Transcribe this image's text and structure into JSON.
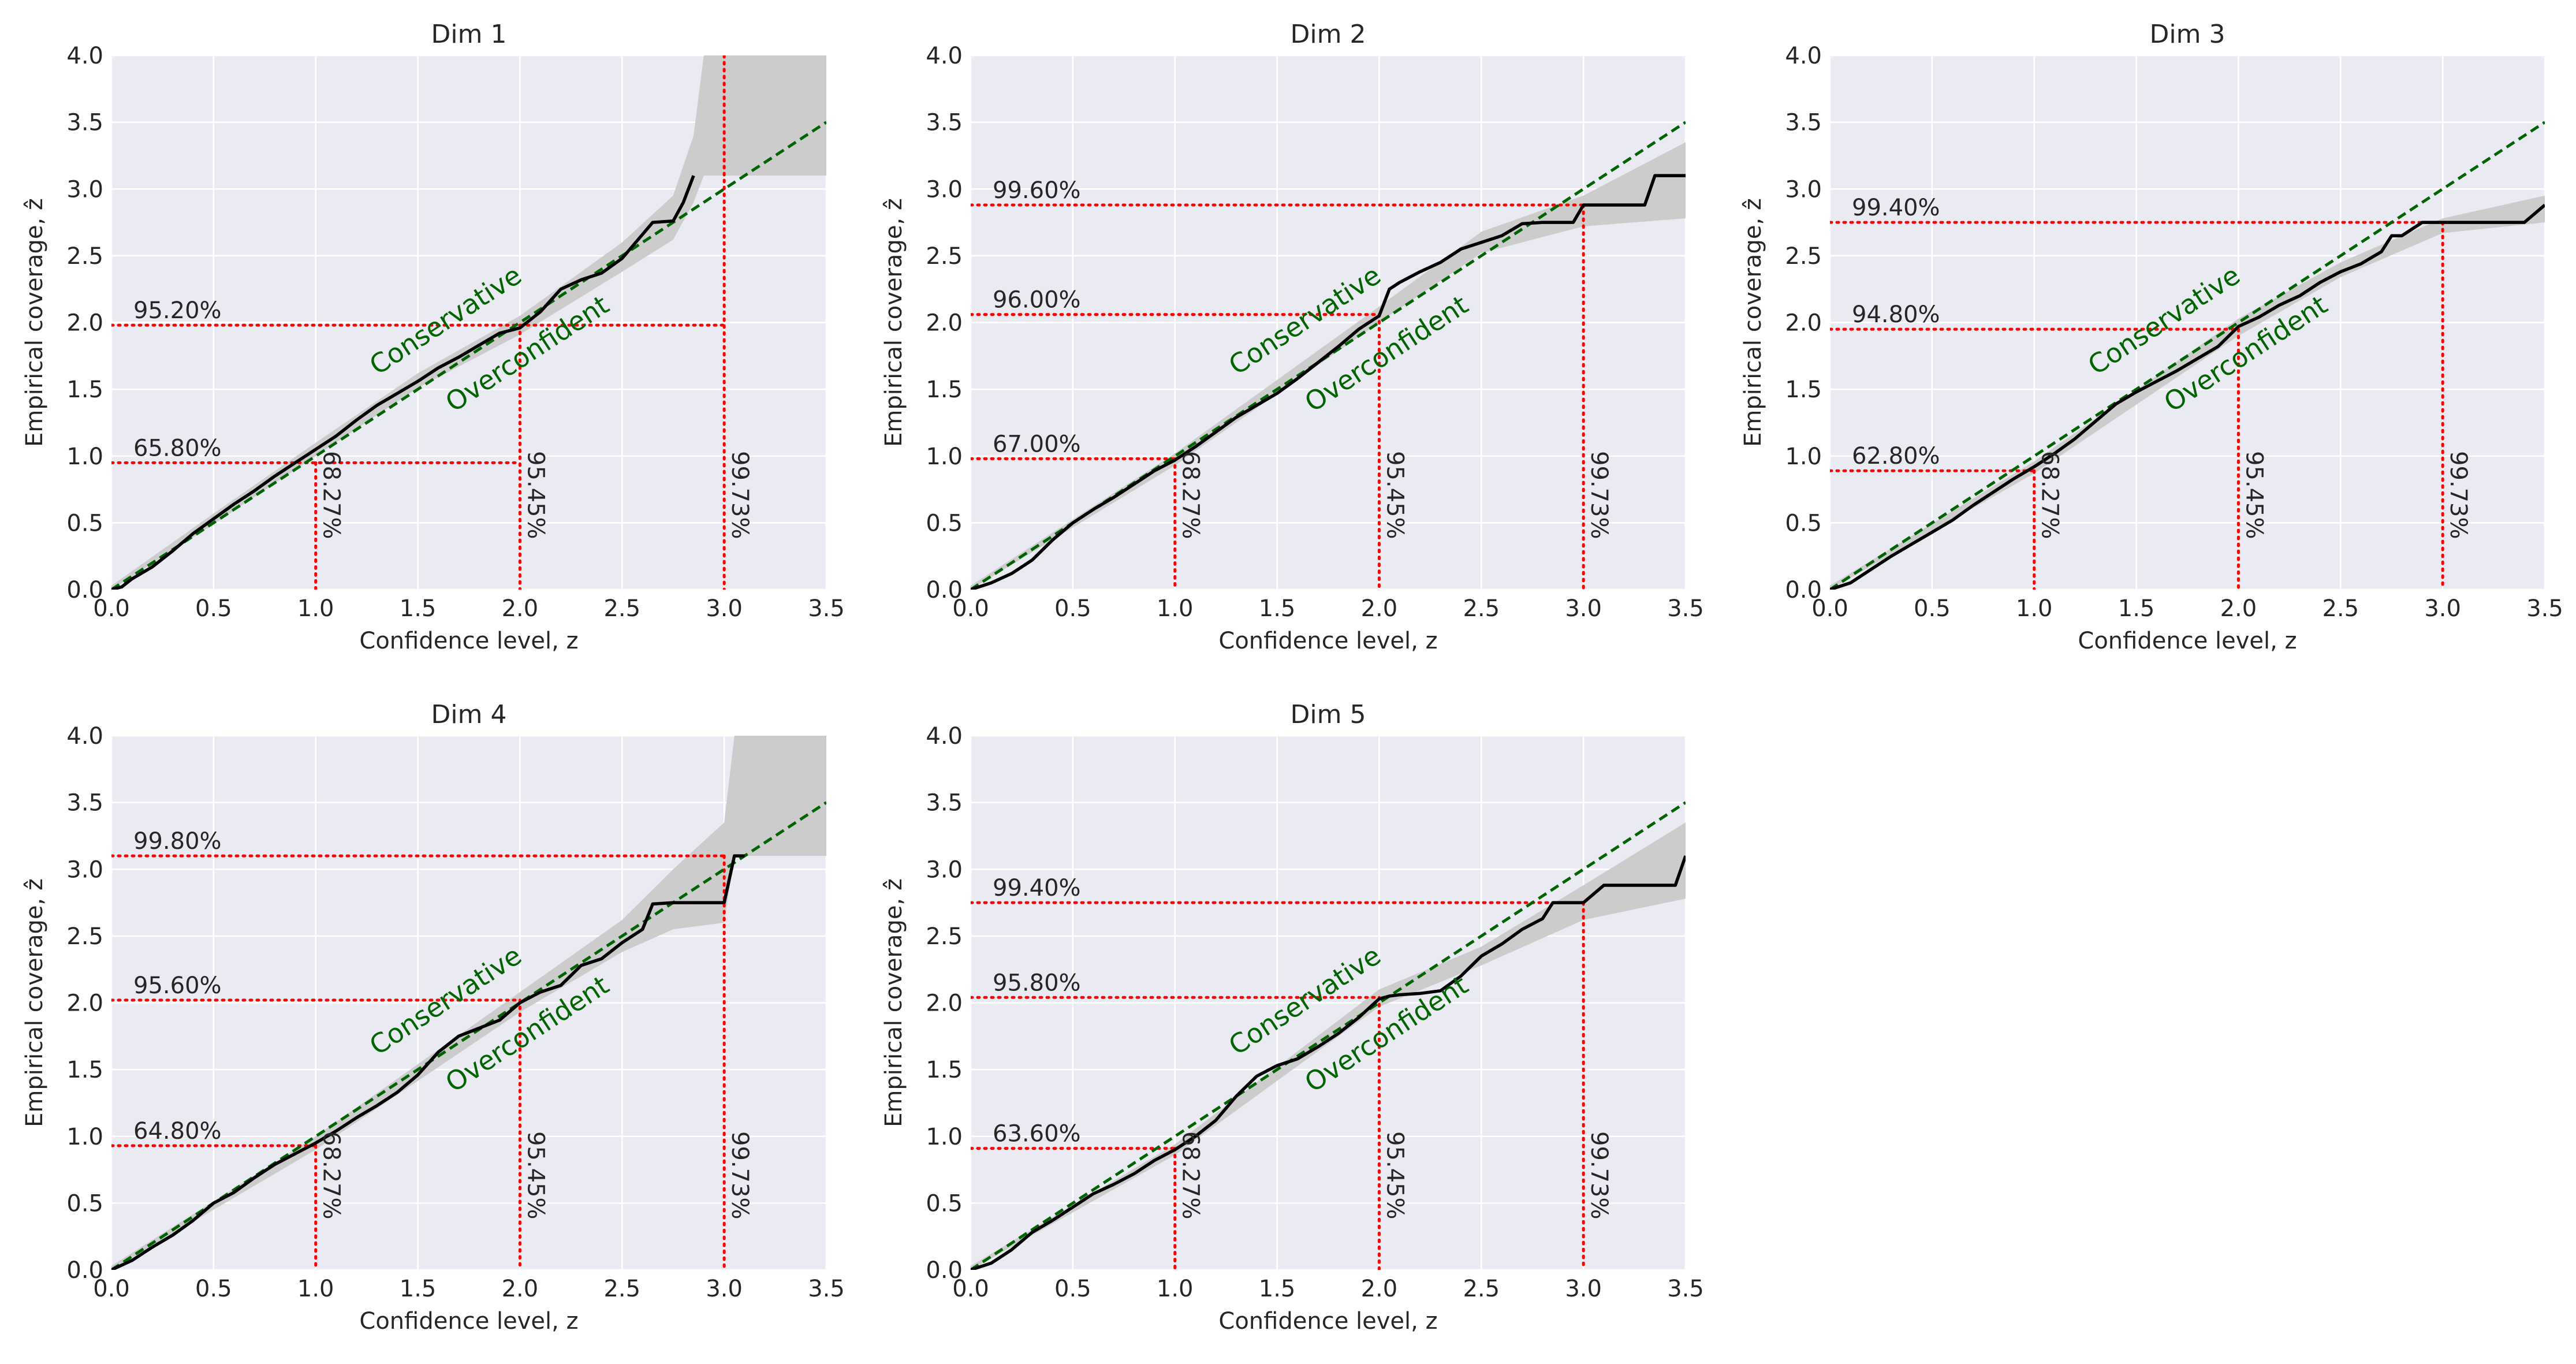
{
  "chart_data": [
    {
      "type": "line",
      "title": "Dim 1",
      "xlabel": "Confidence level, z",
      "ylabel": "Empirical coverage, ẑ",
      "xlim": [
        0.0,
        3.5
      ],
      "ylim": [
        0.0,
        4.0
      ],
      "xticks": [
        "0.0",
        "0.5",
        "1.0",
        "1.5",
        "2.0",
        "2.5",
        "3.0",
        "3.5"
      ],
      "yticks": [
        "0.0",
        "0.5",
        "1.0",
        "1.5",
        "2.0",
        "2.5",
        "3.0",
        "3.5",
        "4.0"
      ],
      "grid": true,
      "series": [
        {
          "name": "empirical coverage",
          "color": "#000000",
          "x": [
            0,
            0.05,
            0.1,
            0.2,
            0.3,
            0.4,
            0.5,
            0.6,
            0.7,
            0.8,
            0.9,
            1.0,
            1.1,
            1.2,
            1.3,
            1.4,
            1.5,
            1.6,
            1.7,
            1.8,
            1.9,
            2.0,
            2.1,
            2.2,
            2.3,
            2.4,
            2.5,
            2.6,
            2.65,
            2.75,
            2.8,
            2.85
          ],
          "y": [
            0,
            0.02,
            0.08,
            0.17,
            0.29,
            0.42,
            0.53,
            0.64,
            0.74,
            0.85,
            0.95,
            1.05,
            1.15,
            1.27,
            1.38,
            1.47,
            1.56,
            1.66,
            1.74,
            1.83,
            1.92,
            1.96,
            2.08,
            2.25,
            2.32,
            2.37,
            2.48,
            2.66,
            2.75,
            2.76,
            2.9,
            3.1
          ]
        },
        {
          "name": "confidence band lower",
          "color": "#cccccc",
          "x": [
            0,
            0.5,
            1.0,
            1.5,
            2.0,
            2.5,
            2.75,
            2.85,
            2.9,
            3.5
          ],
          "y": [
            0,
            0.49,
            1.0,
            1.51,
            1.91,
            2.38,
            2.62,
            2.9,
            3.1,
            3.1
          ]
        },
        {
          "name": "confidence band upper",
          "color": "#cccccc",
          "x": [
            0,
            0.5,
            1.0,
            1.5,
            2.0,
            2.5,
            2.75,
            2.85,
            2.9,
            3.5
          ],
          "y": [
            0.03,
            0.57,
            1.1,
            1.62,
            2.05,
            2.6,
            2.95,
            3.4,
            4.0,
            4.0
          ]
        },
        {
          "name": "ideal calibration",
          "color": "#006400",
          "x": [
            0,
            3.5
          ],
          "y": [
            0,
            3.5
          ]
        }
      ],
      "reference_z": [
        1.0,
        2.0,
        3.0
      ],
      "reference_labels": [
        "68.27%",
        "95.45%",
        "99.73%"
      ],
      "coverage_levels": [
        0.95,
        1.98
      ],
      "coverage_labels": [
        "65.80%",
        "95.20%"
      ],
      "region_labels": {
        "above": "Conservative",
        "below": "Overconfident"
      }
    },
    {
      "type": "line",
      "title": "Dim 2",
      "xlabel": "Confidence level, z",
      "ylabel": "Empirical coverage, ẑ",
      "xlim": [
        0.0,
        3.5
      ],
      "ylim": [
        0.0,
        4.0
      ],
      "xticks": [
        "0.0",
        "0.5",
        "1.0",
        "1.5",
        "2.0",
        "2.5",
        "3.0",
        "3.5"
      ],
      "yticks": [
        "0.0",
        "0.5",
        "1.0",
        "1.5",
        "2.0",
        "2.5",
        "3.0",
        "3.5",
        "4.0"
      ],
      "grid": true,
      "series": [
        {
          "name": "empirical coverage",
          "color": "#000000",
          "x": [
            0,
            0.1,
            0.2,
            0.3,
            0.4,
            0.5,
            0.6,
            0.7,
            0.8,
            0.9,
            1.0,
            1.1,
            1.2,
            1.3,
            1.4,
            1.5,
            1.6,
            1.7,
            1.8,
            1.9,
            2.0,
            2.05,
            2.1,
            2.2,
            2.3,
            2.4,
            2.5,
            2.6,
            2.7,
            2.8,
            2.95,
            3.0,
            3.3,
            3.35,
            3.5
          ],
          "y": [
            0,
            0.05,
            0.12,
            0.22,
            0.37,
            0.5,
            0.6,
            0.69,
            0.79,
            0.89,
            0.97,
            1.07,
            1.18,
            1.29,
            1.38,
            1.47,
            1.58,
            1.7,
            1.82,
            1.95,
            2.05,
            2.25,
            2.3,
            2.38,
            2.45,
            2.55,
            2.6,
            2.65,
            2.74,
            2.75,
            2.75,
            2.88,
            2.88,
            3.1,
            3.1
          ]
        },
        {
          "name": "confidence band lower",
          "color": "#cccccc",
          "x": [
            0,
            1.0,
            2.0,
            2.5,
            3.0,
            3.5
          ],
          "y": [
            0,
            0.93,
            2.0,
            2.52,
            2.72,
            2.78
          ]
        },
        {
          "name": "confidence band upper",
          "color": "#cccccc",
          "x": [
            0,
            1.0,
            2.0,
            2.5,
            3.0,
            3.5
          ],
          "y": [
            0.03,
            1.02,
            2.12,
            2.68,
            2.95,
            3.35
          ]
        },
        {
          "name": "ideal calibration",
          "color": "#006400",
          "x": [
            0,
            3.5
          ],
          "y": [
            0,
            3.5
          ]
        }
      ],
      "reference_z": [
        1.0,
        2.0,
        3.0
      ],
      "reference_labels": [
        "68.27%",
        "95.45%",
        "99.73%"
      ],
      "coverage_levels": [
        0.98,
        2.06,
        2.88
      ],
      "coverage_labels": [
        "67.00%",
        "96.00%",
        "99.60%"
      ],
      "region_labels": {
        "above": "Conservative",
        "below": "Overconfident"
      }
    },
    {
      "type": "line",
      "title": "Dim 3",
      "xlabel": "Confidence level, z",
      "ylabel": "Empirical coverage, ẑ",
      "xlim": [
        0.0,
        3.5
      ],
      "ylim": [
        0.0,
        4.0
      ],
      "xticks": [
        "0.0",
        "0.5",
        "1.0",
        "1.5",
        "2.0",
        "2.5",
        "3.0",
        "3.5"
      ],
      "yticks": [
        "0.0",
        "0.5",
        "1.0",
        "1.5",
        "2.0",
        "2.5",
        "3.0",
        "3.5",
        "4.0"
      ],
      "grid": true,
      "series": [
        {
          "name": "empirical coverage",
          "color": "#000000",
          "x": [
            0,
            0.1,
            0.2,
            0.3,
            0.4,
            0.5,
            0.6,
            0.7,
            0.8,
            0.9,
            1.0,
            1.1,
            1.2,
            1.3,
            1.4,
            1.5,
            1.6,
            1.7,
            1.8,
            1.9,
            2.0,
            2.1,
            2.2,
            2.3,
            2.4,
            2.5,
            2.6,
            2.7,
            2.75,
            2.8,
            2.9,
            3.0,
            3.4,
            3.5
          ],
          "y": [
            0,
            0.05,
            0.15,
            0.25,
            0.34,
            0.43,
            0.52,
            0.63,
            0.73,
            0.83,
            0.92,
            1.02,
            1.13,
            1.26,
            1.39,
            1.48,
            1.56,
            1.64,
            1.73,
            1.82,
            1.97,
            2.04,
            2.13,
            2.2,
            2.3,
            2.38,
            2.44,
            2.53,
            2.65,
            2.65,
            2.75,
            2.75,
            2.75,
            2.88
          ]
        },
        {
          "name": "confidence band lower",
          "color": "#cccccc",
          "x": [
            0,
            1.0,
            2.0,
            2.5,
            3.0,
            3.5
          ],
          "y": [
            0,
            0.87,
            1.9,
            2.34,
            2.67,
            2.75
          ]
        },
        {
          "name": "confidence band upper",
          "color": "#cccccc",
          "x": [
            0,
            1.0,
            2.0,
            2.5,
            3.0,
            3.5
          ],
          "y": [
            0.03,
            0.96,
            2.03,
            2.45,
            2.78,
            2.95
          ]
        },
        {
          "name": "ideal calibration",
          "color": "#006400",
          "x": [
            0,
            3.5
          ],
          "y": [
            0,
            3.5
          ]
        }
      ],
      "reference_z": [
        1.0,
        2.0,
        3.0
      ],
      "reference_labels": [
        "68.27%",
        "95.45%",
        "99.73%"
      ],
      "coverage_levels": [
        0.89,
        1.95,
        2.75
      ],
      "coverage_labels": [
        "62.80%",
        "94.80%",
        "99.40%"
      ],
      "region_labels": {
        "above": "Conservative",
        "below": "Overconfident"
      }
    },
    {
      "type": "line",
      "title": "Dim 4",
      "xlabel": "Confidence level, z",
      "ylabel": "Empirical coverage, ẑ",
      "xlim": [
        0.0,
        3.5
      ],
      "ylim": [
        0.0,
        4.0
      ],
      "xticks": [
        "0.0",
        "0.5",
        "1.0",
        "1.5",
        "2.0",
        "2.5",
        "3.0",
        "3.5"
      ],
      "yticks": [
        "0.0",
        "0.5",
        "1.0",
        "1.5",
        "2.0",
        "2.5",
        "3.0",
        "3.5",
        "4.0"
      ],
      "grid": true,
      "series": [
        {
          "name": "empirical coverage",
          "color": "#000000",
          "x": [
            0,
            0.1,
            0.2,
            0.3,
            0.4,
            0.5,
            0.6,
            0.7,
            0.8,
            0.9,
            1.0,
            1.1,
            1.2,
            1.3,
            1.4,
            1.5,
            1.6,
            1.7,
            1.8,
            1.9,
            2.0,
            2.1,
            2.2,
            2.3,
            2.4,
            2.5,
            2.6,
            2.65,
            2.75,
            2.95,
            3.0,
            3.05,
            3.1
          ],
          "y": [
            0,
            0.07,
            0.17,
            0.26,
            0.37,
            0.5,
            0.58,
            0.69,
            0.79,
            0.87,
            0.95,
            1.04,
            1.14,
            1.23,
            1.33,
            1.46,
            1.63,
            1.75,
            1.81,
            1.87,
            2.0,
            2.08,
            2.13,
            2.28,
            2.33,
            2.45,
            2.55,
            2.74,
            2.75,
            2.75,
            2.75,
            3.1,
            3.1
          ]
        },
        {
          "name": "confidence band lower",
          "color": "#cccccc",
          "x": [
            0,
            1.0,
            2.0,
            2.5,
            2.75,
            3.0,
            3.05,
            3.5
          ],
          "y": [
            0,
            0.9,
            1.93,
            2.38,
            2.55,
            2.6,
            3.1,
            3.1
          ]
        },
        {
          "name": "confidence band upper",
          "color": "#cccccc",
          "x": [
            0,
            1.0,
            2.0,
            2.5,
            2.75,
            3.0,
            3.05,
            3.5
          ],
          "y": [
            0.03,
            1.0,
            2.08,
            2.62,
            3.0,
            3.35,
            4.0,
            4.0
          ]
        },
        {
          "name": "ideal calibration",
          "color": "#006400",
          "x": [
            0,
            3.5
          ],
          "y": [
            0,
            3.5
          ]
        }
      ],
      "reference_z": [
        1.0,
        2.0,
        3.0
      ],
      "reference_labels": [
        "68.27%",
        "95.45%",
        "99.73%"
      ],
      "coverage_levels": [
        0.93,
        2.02,
        3.1
      ],
      "coverage_labels": [
        "64.80%",
        "95.60%",
        "99.80%"
      ],
      "region_labels": {
        "above": "Conservative",
        "below": "Overconfident"
      }
    },
    {
      "type": "line",
      "title": "Dim 5",
      "xlabel": "Confidence level, z",
      "ylabel": "Empirical coverage, ẑ",
      "xlim": [
        0.0,
        3.5
      ],
      "ylim": [
        0.0,
        4.0
      ],
      "xticks": [
        "0.0",
        "0.5",
        "1.0",
        "1.5",
        "2.0",
        "2.5",
        "3.0",
        "3.5"
      ],
      "yticks": [
        "0.0",
        "0.5",
        "1.0",
        "1.5",
        "2.0",
        "2.5",
        "3.0",
        "3.5",
        "4.0"
      ],
      "grid": true,
      "series": [
        {
          "name": "empirical coverage",
          "color": "#000000",
          "x": [
            0,
            0.1,
            0.2,
            0.3,
            0.4,
            0.5,
            0.6,
            0.7,
            0.8,
            0.9,
            1.0,
            1.1,
            1.2,
            1.3,
            1.4,
            1.5,
            1.6,
            1.7,
            1.8,
            1.9,
            2.0,
            2.05,
            2.1,
            2.2,
            2.3,
            2.4,
            2.5,
            2.6,
            2.7,
            2.8,
            2.85,
            3.0,
            3.1,
            3.2,
            3.45,
            3.5
          ],
          "y": [
            0,
            0.05,
            0.15,
            0.28,
            0.37,
            0.47,
            0.57,
            0.64,
            0.72,
            0.82,
            0.9,
            1.0,
            1.12,
            1.3,
            1.45,
            1.53,
            1.58,
            1.67,
            1.77,
            1.89,
            2.03,
            2.05,
            2.06,
            2.07,
            2.09,
            2.2,
            2.35,
            2.44,
            2.55,
            2.63,
            2.75,
            2.75,
            2.88,
            2.88,
            2.88,
            3.1
          ]
        },
        {
          "name": "confidence band lower",
          "color": "#cccccc",
          "x": [
            0,
            1.0,
            2.0,
            2.5,
            3.0,
            3.5
          ],
          "y": [
            0,
            0.86,
            1.97,
            2.28,
            2.62,
            2.78
          ]
        },
        {
          "name": "confidence band upper",
          "color": "#cccccc",
          "x": [
            0,
            1.0,
            2.0,
            2.5,
            3.0,
            3.5
          ],
          "y": [
            0.03,
            0.94,
            2.1,
            2.42,
            2.88,
            3.35
          ]
        },
        {
          "name": "ideal calibration",
          "color": "#006400",
          "x": [
            0,
            3.5
          ],
          "y": [
            0,
            3.5
          ]
        }
      ],
      "reference_z": [
        1.0,
        2.0,
        3.0
      ],
      "reference_labels": [
        "68.27%",
        "95.45%",
        "99.73%"
      ],
      "coverage_levels": [
        0.91,
        2.04,
        2.75
      ],
      "coverage_labels": [
        "63.60%",
        "95.80%",
        "99.40%"
      ],
      "region_labels": {
        "above": "Conservative",
        "below": "Overconfident"
      }
    }
  ],
  "colors": {
    "axes_bg": "#eaeaf2",
    "grid": "#ffffff",
    "band": "#cccccc",
    "empirical_line": "#000000",
    "ideal_line": "#006400",
    "reference_line": "#ff0000",
    "text": "#262626"
  }
}
